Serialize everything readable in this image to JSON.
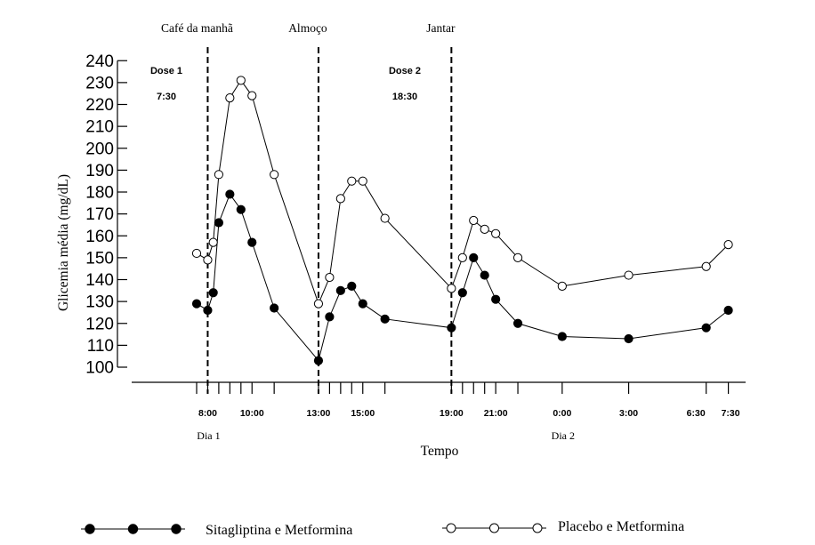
{
  "chart_data": {
    "type": "line",
    "title": "",
    "xlabel": "Tempo",
    "ylabel": "Glicemia média (mg/dL)",
    "ylim": [
      100,
      240
    ],
    "y_ticks": [
      100,
      110,
      120,
      130,
      140,
      150,
      160,
      170,
      180,
      190,
      200,
      210,
      220,
      230,
      240
    ],
    "x_unit": "hours since 00:00 of Dia 1",
    "x_tick_positions": [
      7.5,
      8,
      8.5,
      9,
      9.5,
      10,
      11,
      13,
      13.5,
      14,
      14.5,
      15,
      16,
      19,
      19.5,
      20,
      20.5,
      21,
      22,
      24,
      27,
      30.5,
      31.5
    ],
    "x_tick_labels": [
      {
        "x": 8,
        "label": "8:00"
      },
      {
        "x": 10,
        "label": "10:00"
      },
      {
        "x": 13,
        "label": "13:00"
      },
      {
        "x": 15,
        "label": "15:00"
      },
      {
        "x": 19,
        "label": "19:00"
      },
      {
        "x": 21,
        "label": "21:00"
      },
      {
        "x": 24,
        "label": "0:00"
      },
      {
        "x": 27,
        "label": "3:00"
      },
      {
        "x": 30.5,
        "label": "6:30"
      },
      {
        "x": 31.5,
        "label": "7:30"
      }
    ],
    "day_labels": [
      {
        "x": 8,
        "label": "Dia 1"
      },
      {
        "x": 24,
        "label": "Dia 2"
      }
    ],
    "events": [
      {
        "x": 8,
        "label": "Café da manhã"
      },
      {
        "x": 13,
        "label": "Almoço"
      },
      {
        "x": 19,
        "label": "Jantar"
      }
    ],
    "doses": [
      {
        "x": 7.5,
        "name": "Dose 1",
        "time": "7:30"
      },
      {
        "x": 18.5,
        "name": "Dose 2",
        "time": "18:30"
      }
    ],
    "series": [
      {
        "name": "Sitagliptina e Metformina",
        "marker": "filled-circle",
        "x": [
          7.5,
          8,
          8.25,
          8.5,
          9,
          9.5,
          10,
          11,
          13,
          13.5,
          14,
          14.5,
          15,
          16,
          19,
          19.5,
          20,
          20.5,
          21,
          22,
          24,
          27,
          30.5,
          31.5
        ],
        "values": [
          129,
          126,
          134,
          166,
          179,
          172,
          157,
          127,
          103,
          123,
          135,
          137,
          129,
          122,
          118,
          134,
          150,
          142,
          131,
          120,
          114,
          113,
          118,
          126
        ]
      },
      {
        "name": "Placebo e Metformina",
        "marker": "open-circle",
        "x": [
          7.5,
          8,
          8.25,
          8.5,
          9,
          9.5,
          10,
          11,
          13,
          13.5,
          14,
          14.5,
          15,
          16,
          19,
          19.5,
          20,
          20.5,
          21,
          22,
          24,
          27,
          30.5,
          31.5
        ],
        "values": [
          152,
          149,
          157,
          188,
          223,
          231,
          224,
          188,
          129,
          141,
          177,
          185,
          185,
          168,
          136,
          150,
          167,
          163,
          161,
          150,
          137,
          142,
          146,
          156
        ]
      }
    ],
    "legend_position": "bottom"
  }
}
